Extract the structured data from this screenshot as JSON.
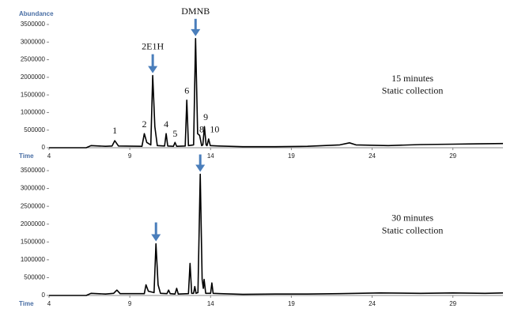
{
  "chart_data": [
    {
      "type": "line",
      "color": "#000000",
      "ylabel": "Abundance",
      "xlabel": "Time",
      "xlim": [
        4,
        32.1
      ],
      "xticks": [
        4,
        9,
        14,
        19,
        24,
        29
      ],
      "ylim": [
        0,
        3500000
      ],
      "yticks": [
        0,
        500000,
        1000000,
        1500000,
        2000000,
        2500000,
        3000000,
        3500000
      ],
      "x": [
        4,
        6.3,
        6.6,
        7.5,
        7.9,
        8.07,
        8.3,
        9.75,
        9.9,
        10.05,
        10.3,
        10.42,
        10.55,
        10.7,
        11.15,
        11.25,
        11.35,
        11.7,
        11.8,
        11.9,
        12.43,
        12.53,
        12.63,
        12.95,
        13.07,
        13.2,
        13.32,
        13.45,
        13.52,
        13.62,
        13.72,
        13.78,
        13.88,
        13.98,
        14.5,
        16,
        18,
        20,
        22,
        22.6,
        23,
        25,
        27,
        29,
        30.5,
        32.1
      ],
      "values": [
        0,
        0,
        60000,
        40000,
        50000,
        200000,
        50000,
        40000,
        400000,
        150000,
        80000,
        2050000,
        600000,
        60000,
        50000,
        400000,
        50000,
        40000,
        150000,
        40000,
        50000,
        1350000,
        60000,
        80000,
        3100000,
        400000,
        350000,
        60000,
        80000,
        600000,
        80000,
        60000,
        250000,
        60000,
        50000,
        30000,
        30000,
        40000,
        80000,
        140000,
        80000,
        60000,
        90000,
        100000,
        110000,
        120000
      ],
      "annotations": [
        {
          "text": "DMNB",
          "x": 13.07,
          "y": 3850000
        },
        {
          "text": "2E1H",
          "x": 10.42,
          "y": 2850000
        },
        {
          "text": "1",
          "x": 8.07,
          "y": 460000
        },
        {
          "text": "2",
          "x": 9.9,
          "y": 650000
        },
        {
          "text": "4",
          "x": 11.25,
          "y": 650000
        },
        {
          "text": "5",
          "x": 11.8,
          "y": 380000
        },
        {
          "text": "6",
          "x": 12.53,
          "y": 1600000
        },
        {
          "text": "8",
          "x": 13.45,
          "y": 500000
        },
        {
          "text": "9",
          "x": 13.7,
          "y": 850000
        },
        {
          "text": "10",
          "x": 14.25,
          "y": 500000
        },
        {
          "text": "15 minutes",
          "x": 26.5,
          "y": 1950000
        },
        {
          "text": "Static collection",
          "x": 26.5,
          "y": 1600000
        }
      ]
    },
    {
      "type": "line",
      "color": "#000000",
      "ylabel": "Abundance",
      "xlabel": "Time",
      "xlim": [
        4,
        32.1
      ],
      "xticks": [
        4,
        9,
        14,
        19,
        24,
        29
      ],
      "ylim": [
        0,
        3500000
      ],
      "yticks": [
        0,
        500000,
        1000000,
        1500000,
        2000000,
        2500000,
        3000000,
        3500000
      ],
      "x": [
        4,
        6.3,
        6.6,
        7.5,
        8.0,
        8.2,
        8.4,
        9.9,
        10.0,
        10.15,
        10.5,
        10.62,
        10.75,
        10.9,
        11.3,
        11.4,
        11.5,
        11.8,
        11.9,
        12.0,
        12.63,
        12.73,
        12.83,
        12.95,
        13.02,
        13.1,
        13.22,
        13.36,
        13.48,
        13.55,
        13.6,
        13.7,
        14.0,
        14.08,
        14.16,
        14.6,
        16,
        18,
        20,
        22,
        24.5,
        27,
        29,
        31,
        32.1
      ],
      "values": [
        0,
        0,
        60000,
        40000,
        60000,
        150000,
        50000,
        50000,
        300000,
        120000,
        80000,
        1450000,
        300000,
        60000,
        50000,
        150000,
        50000,
        40000,
        200000,
        40000,
        50000,
        900000,
        60000,
        60000,
        250000,
        60000,
        80000,
        3400000,
        450000,
        200000,
        450000,
        60000,
        60000,
        350000,
        60000,
        50000,
        30000,
        40000,
        40000,
        50000,
        70000,
        60000,
        70000,
        60000,
        70000
      ],
      "annotations": [
        {
          "text": "30 minutes",
          "x": 26.5,
          "y": 2150000
        },
        {
          "text": "Static collection",
          "x": 26.5,
          "y": 1800000
        }
      ]
    }
  ]
}
